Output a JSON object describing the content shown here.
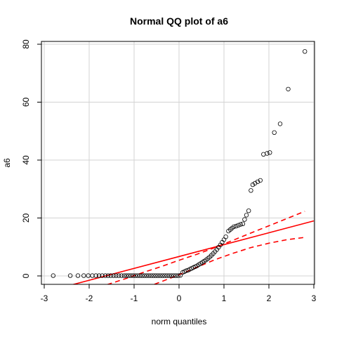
{
  "chart_data": {
    "type": "scatter",
    "title": "Normal QQ plot of  a6",
    "xlabel": "norm quantiles",
    "ylabel": "a6",
    "xlim": [
      -3,
      3
    ],
    "ylim": [
      -3,
      80
    ],
    "xticks": [
      -3,
      -2,
      -1,
      0,
      1,
      2,
      3
    ],
    "yticks": [
      0,
      20,
      40,
      60,
      80
    ],
    "grid": true,
    "colors": {
      "points": "#000000",
      "reference": "#ff0000",
      "grid": "#d3d3d3"
    },
    "points": [
      [
        -2.8,
        0.1
      ],
      [
        -2.42,
        0.1
      ],
      [
        -2.25,
        0.1
      ],
      [
        -2.12,
        0.1
      ],
      [
        -2.02,
        0.1
      ],
      [
        -1.93,
        0.1
      ],
      [
        -1.85,
        0.1
      ],
      [
        -1.78,
        0.1
      ],
      [
        -1.71,
        0.1
      ],
      [
        -1.64,
        0.1
      ],
      [
        -1.58,
        0.1
      ],
      [
        -1.52,
        0.1
      ],
      [
        -1.46,
        0.1
      ],
      [
        -1.4,
        0.1
      ],
      [
        -1.34,
        0.1
      ],
      [
        -1.28,
        0.1
      ],
      [
        -1.22,
        0.1
      ],
      [
        -1.17,
        0.1
      ],
      [
        -1.12,
        0.1
      ],
      [
        -1.07,
        0.1
      ],
      [
        -1.02,
        0.1
      ],
      [
        -0.97,
        0.1
      ],
      [
        -0.92,
        0.1
      ],
      [
        -0.87,
        0.1
      ],
      [
        -0.82,
        0.1
      ],
      [
        -0.77,
        0.1
      ],
      [
        -0.72,
        0.1
      ],
      [
        -0.67,
        0.1
      ],
      [
        -0.62,
        0.1
      ],
      [
        -0.57,
        0.1
      ],
      [
        -0.52,
        0.1
      ],
      [
        -0.47,
        0.1
      ],
      [
        -0.42,
        0.1
      ],
      [
        -0.37,
        0.1
      ],
      [
        -0.32,
        0.1
      ],
      [
        -0.27,
        0.1
      ],
      [
        -0.22,
        0.1
      ],
      [
        -0.17,
        0.1
      ],
      [
        -0.12,
        0.1
      ],
      [
        -0.07,
        0.1
      ],
      [
        -0.02,
        0.1
      ],
      [
        0.03,
        0.2
      ],
      [
        0.08,
        1.2
      ],
      [
        0.12,
        1.5
      ],
      [
        0.16,
        1.8
      ],
      [
        0.2,
        2.0
      ],
      [
        0.24,
        2.3
      ],
      [
        0.28,
        2.6
      ],
      [
        0.32,
        2.9
      ],
      [
        0.36,
        3.2
      ],
      [
        0.4,
        3.5
      ],
      [
        0.44,
        3.9
      ],
      [
        0.48,
        4.3
      ],
      [
        0.52,
        4.7
      ],
      [
        0.56,
        5.1
      ],
      [
        0.6,
        5.5
      ],
      [
        0.64,
        6.0
      ],
      [
        0.68,
        6.5
      ],
      [
        0.72,
        7.1
      ],
      [
        0.76,
        7.7
      ],
      [
        0.8,
        8.4
      ],
      [
        0.84,
        9.1
      ],
      [
        0.88,
        9.9
      ],
      [
        0.92,
        10.7
      ],
      [
        0.96,
        11.6
      ],
      [
        1.0,
        12.5
      ],
      [
        1.04,
        13.5
      ],
      [
        1.1,
        15.5
      ],
      [
        1.14,
        16.0
      ],
      [
        1.18,
        16.5
      ],
      [
        1.22,
        17.0
      ],
      [
        1.27,
        17.2
      ],
      [
        1.32,
        17.5
      ],
      [
        1.37,
        17.8
      ],
      [
        1.42,
        18.0
      ],
      [
        1.46,
        19.5
      ],
      [
        1.5,
        21.0
      ],
      [
        1.55,
        22.5
      ],
      [
        1.6,
        29.5
      ],
      [
        1.64,
        31.5
      ],
      [
        1.69,
        32.0
      ],
      [
        1.75,
        32.5
      ],
      [
        1.81,
        33.0
      ],
      [
        1.88,
        42.0
      ],
      [
        1.96,
        42.3
      ],
      [
        2.02,
        42.6
      ],
      [
        2.12,
        49.5
      ],
      [
        2.25,
        52.5
      ],
      [
        2.43,
        64.5
      ],
      [
        2.8,
        77.5
      ]
    ],
    "reference_line": {
      "x": [
        -3,
        3
      ],
      "y": [
        -5.6,
        19.0
      ]
    },
    "confidence_band": {
      "x": [
        -1.6,
        -1.2,
        -0.8,
        -0.4,
        0.0,
        0.4,
        0.8,
        1.2,
        1.6,
        2.0,
        2.4,
        2.8
      ],
      "upper": [
        -3.0,
        -1.0,
        1.2,
        3.2,
        5.4,
        7.5,
        9.8,
        12.3,
        14.8,
        17.3,
        19.8,
        22.3
      ],
      "lower": [
        -9.0,
        -6.8,
        -4.4,
        -2.0,
        0.4,
        3.0,
        5.6,
        7.8,
        9.8,
        11.3,
        12.5,
        13.3
      ]
    }
  }
}
